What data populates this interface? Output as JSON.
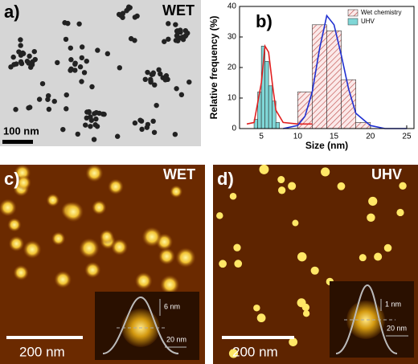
{
  "panels": {
    "a": {
      "label": "a)",
      "tag": "WET",
      "scale_bar": "100 nm"
    },
    "c": {
      "label": "c)",
      "tag": "WET",
      "scale_bar": "200 nm",
      "inset_height": "6 nm",
      "inset_width": "20 nm"
    },
    "d": {
      "label": "d)",
      "tag": "UHV",
      "scale_bar": "200 nm",
      "inset_height": "1 nm",
      "inset_width": "20 nm"
    }
  },
  "chart_data": {
    "type": "histogram",
    "panel_label": "b)",
    "x_label": "Size (nm)",
    "y_label": "Relative frequency (%)",
    "xlim": [
      2,
      26
    ],
    "ylim": [
      0,
      40
    ],
    "xticks": [
      5,
      10,
      15,
      20,
      25
    ],
    "yticks": [
      0,
      10,
      20,
      30,
      40
    ],
    "legend": "upper right",
    "series": [
      {
        "name": "Wet chemistry",
        "color": "#c0504d",
        "hatch": true,
        "bins": [
          10,
          12,
          14,
          16,
          18,
          20
        ],
        "values": [
          12,
          34,
          32,
          16,
          2
        ]
      },
      {
        "name": "UHV",
        "color": "#7fd6d6",
        "hatch": false,
        "bins": [
          4,
          4.5,
          5,
          5.5,
          6,
          6.5,
          7,
          7.5
        ],
        "values": [
          3,
          12,
          27,
          22,
          14,
          9,
          2
        ]
      }
    ],
    "fits": [
      {
        "color": "#e02020",
        "x": [
          3,
          4,
          5,
          5.5,
          6,
          6.5,
          7,
          8,
          10,
          12
        ],
        "values": [
          1.5,
          2,
          15,
          27,
          25,
          15,
          6,
          2,
          1.5,
          1.5
        ]
      },
      {
        "color": "#1f2fd0",
        "x": [
          8,
          10,
          11,
          12,
          13,
          14,
          15,
          16,
          17,
          18,
          20,
          22,
          25
        ],
        "values": [
          0,
          1,
          4,
          12,
          26,
          37,
          34,
          24,
          13,
          5,
          1,
          0,
          0
        ]
      }
    ]
  }
}
